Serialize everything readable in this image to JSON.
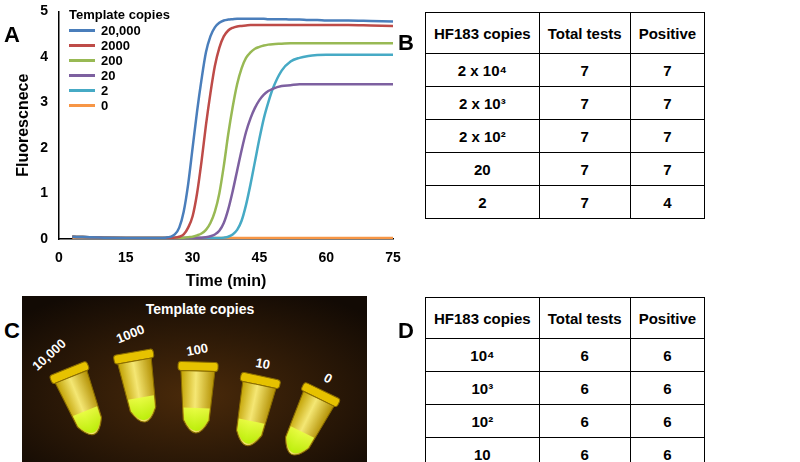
{
  "panel_labels": [
    "A",
    "B",
    "C",
    "D"
  ],
  "chart_data": {
    "type": "line",
    "x_label": "Time (min)",
    "y_label": "Fluorescnece",
    "legend_title": "Template copies",
    "legend": "upper left",
    "grid": false,
    "xlim": [
      0,
      75
    ],
    "xticks": [
      0,
      15,
      30,
      45,
      60,
      75
    ],
    "ylim": [
      0,
      5
    ],
    "yticks": [
      0,
      1,
      2,
      3,
      4,
      5
    ],
    "x": [
      3,
      10,
      20,
      24,
      26,
      27,
      28,
      29,
      30,
      31,
      32,
      33,
      34,
      35,
      36,
      37,
      38,
      39,
      40,
      41,
      42,
      43,
      44,
      45,
      46,
      47,
      48,
      50,
      52,
      54,
      56,
      58,
      60,
      65,
      70,
      75
    ],
    "series": [
      {
        "name": "20,000",
        "color": "#4a7ebb",
        "values": [
          0.05,
          0.03,
          0.02,
          0.03,
          0.1,
          0.25,
          0.6,
          1.2,
          2.0,
          2.8,
          3.5,
          4.1,
          4.45,
          4.65,
          4.75,
          4.8,
          4.82,
          4.83,
          4.84,
          4.84,
          4.84,
          4.84,
          4.84,
          4.84,
          4.84,
          4.83,
          4.83,
          4.83,
          4.82,
          4.82,
          4.81,
          4.81,
          4.8,
          4.8,
          4.79,
          4.78
        ]
      },
      {
        "name": "2000",
        "color": "#be4b48",
        "values": [
          0.05,
          0.03,
          0.02,
          0.02,
          0.03,
          0.05,
          0.1,
          0.25,
          0.5,
          1.0,
          1.7,
          2.5,
          3.2,
          3.8,
          4.2,
          4.45,
          4.58,
          4.64,
          4.67,
          4.68,
          4.69,
          4.7,
          4.7,
          4.7,
          4.7,
          4.7,
          4.7,
          4.7,
          4.7,
          4.7,
          4.7,
          4.7,
          4.7,
          4.7,
          4.69,
          4.68
        ]
      },
      {
        "name": "200",
        "color": "#98b954",
        "values": [
          0.05,
          0.03,
          0.02,
          0.02,
          0.02,
          0.03,
          0.03,
          0.04,
          0.05,
          0.08,
          0.12,
          0.2,
          0.35,
          0.6,
          1.0,
          1.6,
          2.3,
          2.9,
          3.4,
          3.75,
          3.98,
          4.1,
          4.18,
          4.22,
          4.25,
          4.27,
          4.28,
          4.29,
          4.3,
          4.3,
          4.3,
          4.3,
          4.3,
          4.3,
          4.3,
          4.3
        ]
      },
      {
        "name": "20",
        "color": "#7d60a0",
        "values": [
          0.05,
          0.03,
          0.02,
          0.02,
          0.02,
          0.02,
          0.02,
          0.02,
          0.02,
          0.03,
          0.03,
          0.04,
          0.06,
          0.1,
          0.18,
          0.35,
          0.65,
          1.05,
          1.5,
          1.95,
          2.35,
          2.65,
          2.88,
          3.05,
          3.17,
          3.25,
          3.3,
          3.36,
          3.38,
          3.4,
          3.4,
          3.4,
          3.4,
          3.4,
          3.4,
          3.4
        ]
      },
      {
        "name": "2",
        "color": "#46aac5",
        "values": [
          0.05,
          0.03,
          0.02,
          0.02,
          0.02,
          0.02,
          0.02,
          0.02,
          0.02,
          0.02,
          0.02,
          0.02,
          0.02,
          0.02,
          0.02,
          0.03,
          0.05,
          0.1,
          0.2,
          0.4,
          0.75,
          1.2,
          1.7,
          2.2,
          2.65,
          3.0,
          3.3,
          3.7,
          3.9,
          3.98,
          4.02,
          4.04,
          4.05,
          4.05,
          4.05,
          4.05
        ]
      },
      {
        "name": "0",
        "color": "#f79646",
        "values": [
          0.03,
          0.02,
          0.02,
          0.02,
          0.02,
          0.02,
          0.02,
          0.02,
          0.02,
          0.02,
          0.02,
          0.02,
          0.02,
          0.02,
          0.02,
          0.02,
          0.02,
          0.02,
          0.02,
          0.02,
          0.02,
          0.02,
          0.02,
          0.02,
          0.02,
          0.02,
          0.02,
          0.02,
          0.02,
          0.02,
          0.02,
          0.02,
          0.02,
          0.02,
          0.02,
          0.02
        ]
      }
    ]
  },
  "table_b": {
    "header": [
      "HF183 copies",
      "Total tests",
      "Positive"
    ],
    "rows": [
      [
        "2 x 10⁴",
        7,
        7
      ],
      [
        "2 x 10³",
        7,
        7
      ],
      [
        "2 x 10²",
        7,
        7
      ],
      [
        "20",
        7,
        7
      ],
      [
        "2",
        7,
        4
      ]
    ]
  },
  "photo_c": {
    "title": "Template copies",
    "tube_labels": [
      "10,000",
      "1000",
      "100",
      "10",
      "0"
    ]
  },
  "table_d": {
    "header": [
      "HF183 copies",
      "Total tests",
      "Positive"
    ],
    "rows": [
      [
        "10⁴",
        6,
        6
      ],
      [
        "10³",
        6,
        6
      ],
      [
        "10²",
        6,
        6
      ],
      [
        "10",
        6,
        6
      ]
    ]
  }
}
